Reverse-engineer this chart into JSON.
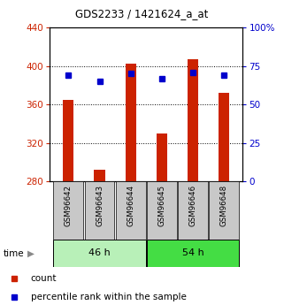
{
  "title": "GDS2233 / 1421624_a_at",
  "samples": [
    "GSM96642",
    "GSM96643",
    "GSM96644",
    "GSM96645",
    "GSM96646",
    "GSM96648"
  ],
  "count_values": [
    365,
    292,
    402,
    330,
    407,
    372
  ],
  "percentile_values": [
    69,
    65,
    70,
    67,
    71,
    69
  ],
  "ymin": 280,
  "ymax": 440,
  "pct_min": 0,
  "pct_max": 100,
  "bar_color": "#cc2200",
  "dot_color": "#0000cc",
  "plot_bg": "#ffffff",
  "yticks_left": [
    280,
    320,
    360,
    400,
    440
  ],
  "yticks_right": [
    0,
    25,
    50,
    75,
    100
  ],
  "left_tick_color": "#cc2200",
  "right_tick_color": "#0000cc",
  "group1_color": "#b8f0b8",
  "group2_color": "#44dd44",
  "sample_bg_color": "#c8c8c8",
  "bar_width": 0.35
}
